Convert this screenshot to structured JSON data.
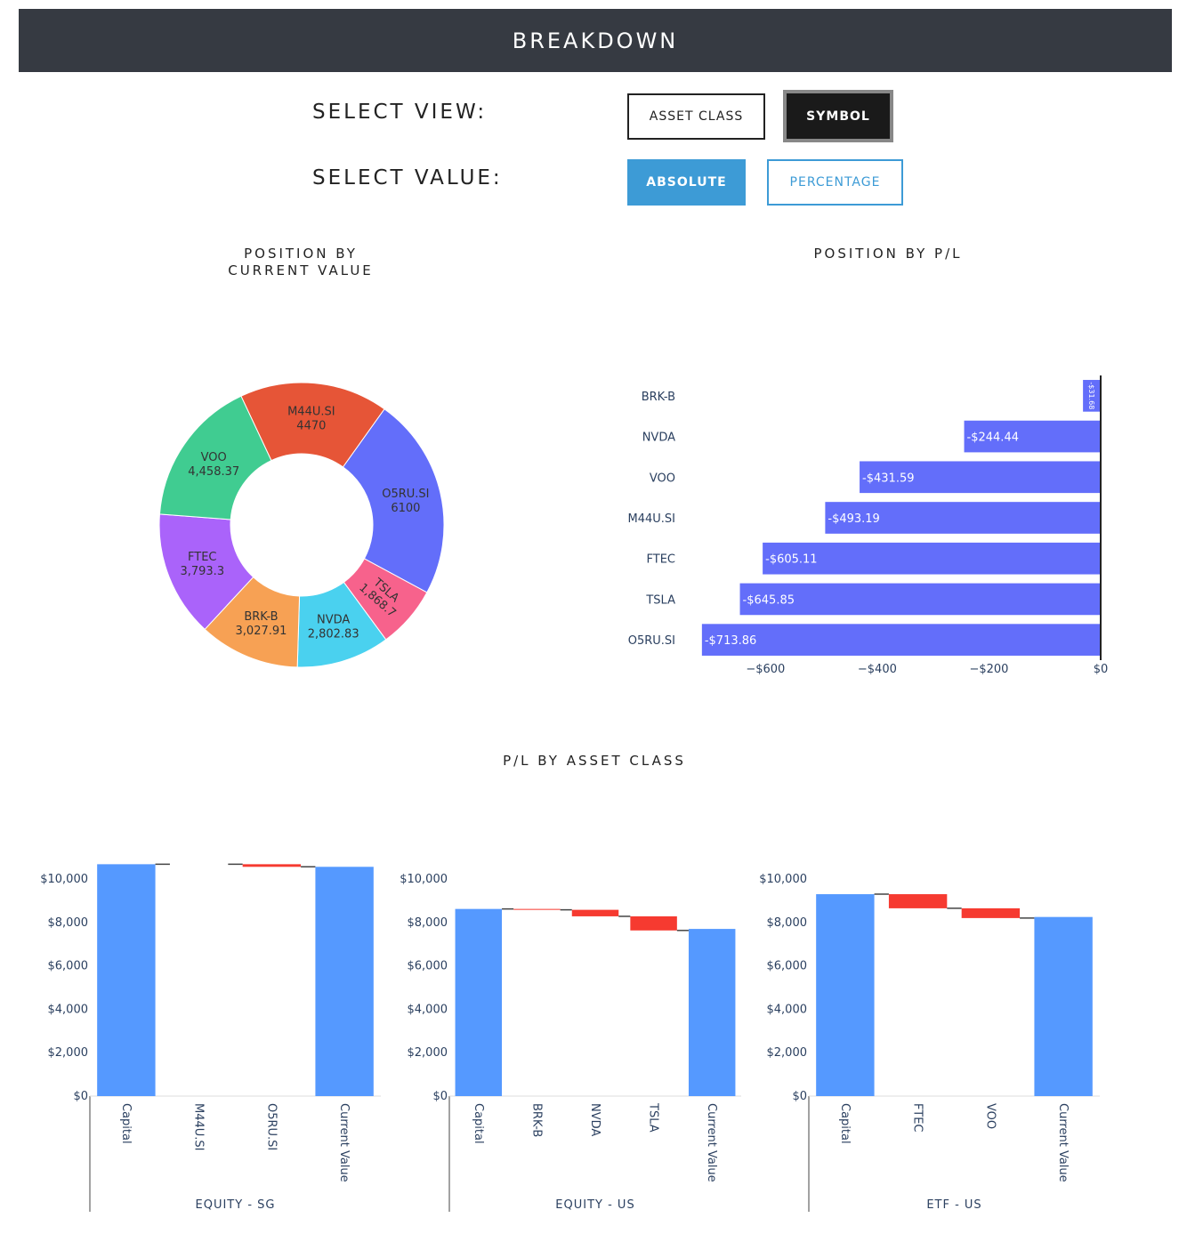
{
  "header": {
    "title": "BREAKDOWN"
  },
  "controls": {
    "view_label": "SELECT VIEW:",
    "view_options": [
      "ASSET CLASS",
      "SYMBOL"
    ],
    "view_selected": "SYMBOL",
    "value_label": "SELECT VALUE:",
    "value_options": [
      "ABSOLUTE",
      "PERCENTAGE"
    ],
    "value_selected": "ABSOLUTE"
  },
  "chart_data": [
    {
      "type": "pie",
      "hole": true,
      "title": "POSITION BY CURRENT VALUE",
      "title_lines": [
        "POSITION BY",
        "CURRENT VALUE"
      ],
      "slices": [
        {
          "label": "O5RU.SI",
          "value": 6100,
          "value_text": "6100",
          "color": "#636efa"
        },
        {
          "label": "TSLA",
          "value": 1868.7,
          "value_text": "1,868.7",
          "color": "#f7628c"
        },
        {
          "label": "NVDA",
          "value": 2802.83,
          "value_text": "2,802.83",
          "color": "#4ad1ef"
        },
        {
          "label": "BRK-B",
          "value": 3027.91,
          "value_text": "3,027.91",
          "color": "#f7a154"
        },
        {
          "label": "FTEC",
          "value": 3793.3,
          "value_text": "3,793.3",
          "color": "#aa63fa"
        },
        {
          "label": "VOO",
          "value": 4458.37,
          "value_text": "4,458.37",
          "color": "#40cc91"
        },
        {
          "label": "M44U.SI",
          "value": 4470,
          "value_text": "4470",
          "color": "#e65537"
        }
      ]
    },
    {
      "type": "bar",
      "orientation": "horizontal",
      "title": "POSITION BY P/L",
      "categories": [
        "BRK-B",
        "NVDA",
        "VOO",
        "M44U.SI",
        "FTEC",
        "TSLA",
        "O5RU.SI"
      ],
      "values": [
        -31.68,
        -244.44,
        -431.59,
        -493.19,
        -605.11,
        -645.85,
        -713.86
      ],
      "value_labels": [
        "-$31.68",
        "-$244.44",
        "-$431.59",
        "-$493.19",
        "-$605.11",
        "-$645.85",
        "-$713.86"
      ],
      "xlim": [
        -720,
        0
      ],
      "xticks": [
        -600,
        -400,
        -200,
        0
      ],
      "xtick_labels": [
        "−$600",
        "−$400",
        "−$200",
        "$0"
      ],
      "color": "#636efa"
    },
    {
      "type": "waterfall",
      "group_title": "P/L BY ASSET CLASS",
      "xlabel": "EQUITY - SG",
      "categories": [
        "Capital",
        "M44U.SI",
        "O5RU.SI",
        "Current Value"
      ],
      "steps": [
        {
          "kind": "total",
          "value": 10680
        },
        {
          "kind": "delta",
          "value": 0
        },
        {
          "kind": "delta",
          "value": -120
        },
        {
          "kind": "total",
          "value": 10560
        }
      ],
      "ylim": [
        0,
        10900
      ],
      "yticks": [
        0,
        2000,
        4000,
        6000,
        8000,
        10000
      ],
      "ytick_labels": [
        "$0",
        "$2,000",
        "$4,000",
        "$6,000",
        "$8,000",
        "$10,000"
      ]
    },
    {
      "type": "waterfall",
      "xlabel": "EQUITY - US",
      "categories": [
        "Capital",
        "BRK-B",
        "NVDA",
        "TSLA",
        "Current Value"
      ],
      "steps": [
        {
          "kind": "total",
          "value": 8620
        },
        {
          "kind": "delta",
          "value": -40
        },
        {
          "kind": "delta",
          "value": -300
        },
        {
          "kind": "delta",
          "value": -650
        },
        {
          "kind": "total",
          "value": 7700
        }
      ],
      "ylim": [
        0,
        10900
      ],
      "yticks": [
        0,
        2000,
        4000,
        6000,
        8000,
        10000
      ],
      "ytick_labels": [
        "$0",
        "$2,000",
        "$4,000",
        "$6,000",
        "$8,000",
        "$10,000"
      ]
    },
    {
      "type": "waterfall",
      "xlabel": "ETF - US",
      "categories": [
        "Capital",
        "FTEC",
        "VOO",
        "Current Value"
      ],
      "steps": [
        {
          "kind": "total",
          "value": 9300
        },
        {
          "kind": "delta",
          "value": -650
        },
        {
          "kind": "delta",
          "value": -450
        },
        {
          "kind": "total",
          "value": 8250
        }
      ],
      "ylim": [
        0,
        10900
      ],
      "yticks": [
        0,
        2000,
        4000,
        6000,
        8000,
        10000
      ],
      "ytick_labels": [
        "$0",
        "$2,000",
        "$4,000",
        "$6,000",
        "$8,000",
        "$10,000"
      ]
    }
  ],
  "colors": {
    "increase_total": "#5599ff",
    "decrease": "#f63a30",
    "connector": "#444444"
  }
}
